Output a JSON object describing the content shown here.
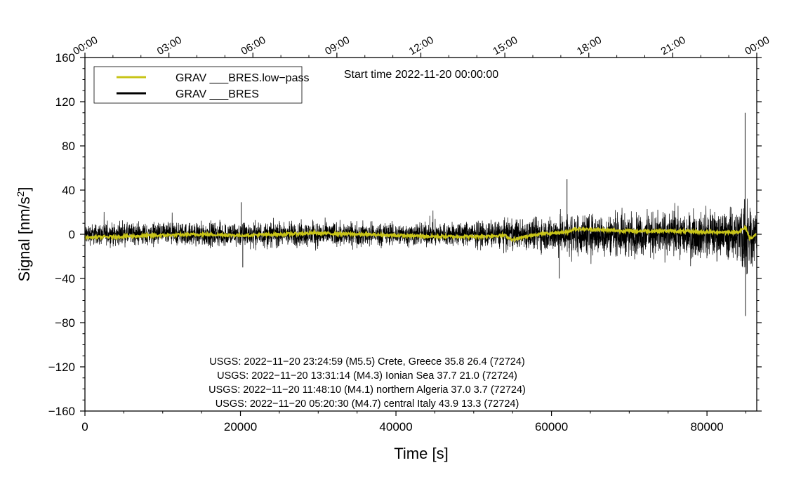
{
  "chart_data": {
    "type": "line",
    "title": "Start time 2022-11-20 00:00:00",
    "xlabel": "Time [s]",
    "ylabel_main": "Signal [nm/s",
    "ylabel_sup": "2",
    "ylabel_end": "]",
    "xlim": [
      0,
      86400
    ],
    "ylim": [
      -160,
      160
    ],
    "grid": false,
    "legend_position": "top-left",
    "x_ticks": [
      0,
      20000,
      40000,
      60000,
      80000
    ],
    "y_ticks": [
      -160,
      -120,
      -80,
      -40,
      0,
      40,
      80,
      120,
      160
    ],
    "x_tick_labels": [
      "0",
      "20000",
      "40000",
      "60000",
      "80000"
    ],
    "y_tick_labels": [
      "−160",
      "−120",
      "−80",
      "−40",
      "0",
      "40",
      "80",
      "120",
      "160"
    ],
    "top_axis": {
      "tick_values": [
        0,
        10800,
        21600,
        32400,
        43200,
        54000,
        64800,
        75600,
        86400
      ],
      "tick_labels": [
        "00:00",
        "03:00",
        "06:00",
        "09:00",
        "12:00",
        "15:00",
        "18:00",
        "21:00",
        "00:00"
      ]
    },
    "series": [
      {
        "name": "GRAV ___BRES.low−pass",
        "color": "#c8c418",
        "style": "low-pass filtered, near zero",
        "x": [
          0,
          5000,
          10000,
          15000,
          20000,
          25000,
          30000,
          35000,
          40000,
          45000,
          50000,
          54000,
          55000,
          58000,
          60000,
          62000,
          63000,
          66000,
          70000,
          75000,
          80000,
          84000,
          85000,
          85500,
          86400
        ],
        "y": [
          -3,
          -2,
          -1,
          0,
          -1,
          0,
          1,
          0,
          -1,
          -2,
          -2,
          -1,
          -5,
          0,
          1,
          2,
          5,
          4,
          3,
          3,
          2,
          2,
          6,
          -4,
          0
        ]
      },
      {
        "name": "GRAV ___BRES",
        "color": "#000000",
        "style": "raw noisy signal, envelope amplitude",
        "envelope_x": [
          0,
          10000,
          20000,
          30000,
          40000,
          50000,
          55000,
          60000,
          62000,
          65000,
          70000,
          75000,
          80000,
          84000,
          85000,
          86000,
          86400
        ],
        "envelope_amplitude": [
          16,
          17,
          19,
          19,
          17,
          19,
          22,
          27,
          33,
          30,
          31,
          33,
          34,
          38,
          75,
          40,
          30
        ],
        "peaks": [
          {
            "x": 84900,
            "y": 110
          },
          {
            "x": 84950,
            "y": -74
          },
          {
            "x": 62000,
            "y": 50
          },
          {
            "x": 20100,
            "y": 29
          },
          {
            "x": 20300,
            "y": -30
          },
          {
            "x": 61000,
            "y": -40
          }
        ]
      }
    ],
    "annotations": [
      "USGS: 2022−11−20 23:24:59 (M5.5) Crete, Greece 35.8 26.4 (72724)",
      "USGS: 2022−11−20 13:31:14 (M4.3) Ionian Sea 37.7 21.0 (72724)",
      "USGS: 2022−11−20 11:48:10 (M4.1) northern Algeria 37.0 3.7 (72724)",
      "USGS: 2022−11−20 05:20:30 (M4.7) central Italy 43.9 13.3 (72724)"
    ]
  }
}
